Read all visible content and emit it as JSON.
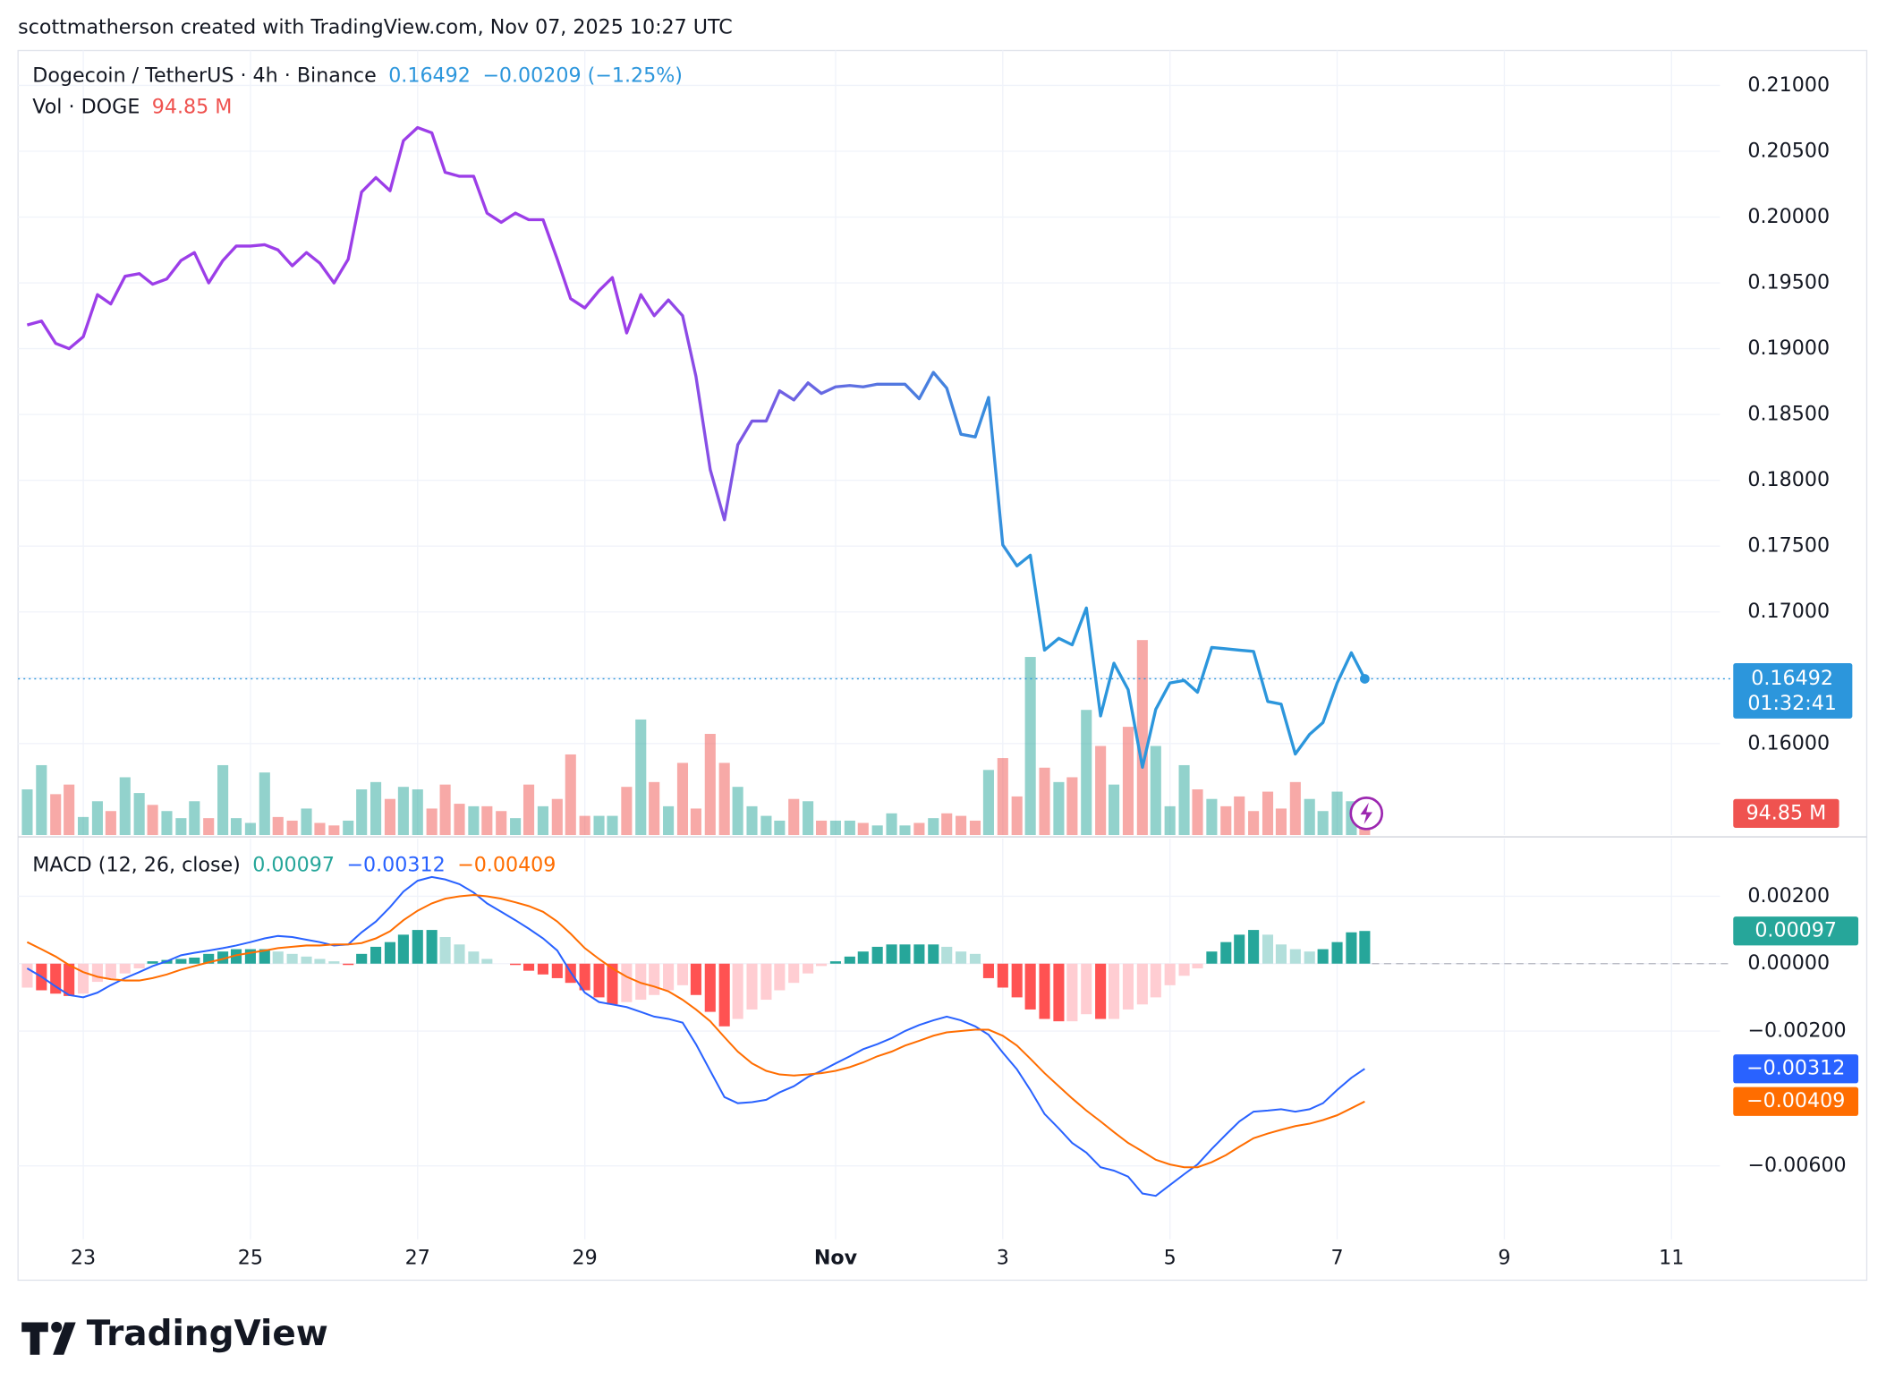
{
  "header": {
    "credit": "scottmatherson created with TradingView.com, Nov 07, 2025 10:27 UTC"
  },
  "footer": {
    "logo": "TradingView"
  },
  "chart_data": [
    {
      "type": "line",
      "title": "Dogecoin / TetherUS · 4h · Binance",
      "change": "−0.00209 (−1.25%)",
      "countdown": "01:32:41",
      "x": [
        22.33,
        22.5,
        22.67,
        22.83,
        23,
        23.17,
        23.33,
        23.5,
        23.67,
        23.83,
        24,
        24.17,
        24.33,
        24.5,
        24.67,
        24.83,
        25,
        25.17,
        25.33,
        25.5,
        25.67,
        25.83,
        26,
        26.17,
        26.33,
        26.5,
        26.67,
        26.83,
        27,
        27.17,
        27.33,
        27.5,
        27.67,
        27.83,
        28,
        28.17,
        28.33,
        28.5,
        28.67,
        28.83,
        29,
        29.17,
        29.33,
        29.5,
        29.67,
        29.83,
        30,
        30.17,
        30.33,
        30.5,
        30.67,
        30.83,
        31,
        31.17,
        31.33,
        31.5,
        31.67,
        31.83,
        32,
        32.17,
        32.33,
        32.5,
        32.67,
        32.83,
        33,
        33.17,
        33.33,
        33.5,
        33.67,
        33.83,
        34,
        34.17,
        34.33,
        34.5,
        34.67,
        34.83,
        35,
        35.17,
        35.33,
        35.5,
        35.67,
        35.83,
        36,
        36.17,
        36.33,
        36.5,
        36.67,
        36.83,
        37,
        37.17,
        37.33,
        37.5,
        37.67,
        37.83,
        38,
        38.17,
        38.33
      ],
      "xlim": [
        22.22,
        42.58
      ],
      "xticks": [
        {
          "value": 23,
          "label": "23"
        },
        {
          "value": 25,
          "label": "25"
        },
        {
          "value": 27,
          "label": "27"
        },
        {
          "value": 29,
          "label": "29"
        },
        {
          "value": 32,
          "label": "Nov"
        },
        {
          "value": 34,
          "label": "3"
        },
        {
          "value": 36,
          "label": "5"
        },
        {
          "value": 38,
          "label": "7"
        },
        {
          "value": 40,
          "label": "9"
        },
        {
          "value": 42,
          "label": "11"
        }
      ],
      "ylim": [
        0.15305,
        0.21265
      ],
      "yticks": [
        {
          "value": 0.16,
          "label": "0.16000"
        },
        {
          "value": 0.165,
          "label": "0.16500"
        },
        {
          "value": 0.17,
          "label": "0.17000"
        },
        {
          "value": 0.175,
          "label": "0.17500"
        },
        {
          "value": 0.18,
          "label": "0.18000"
        },
        {
          "value": 0.185,
          "label": "0.18500"
        },
        {
          "value": 0.19,
          "label": "0.19000"
        },
        {
          "value": 0.195,
          "label": "0.19500"
        },
        {
          "value": 0.2,
          "label": "0.20000"
        },
        {
          "value": 0.205,
          "label": "0.20500"
        },
        {
          "value": 0.21,
          "label": "0.21000"
        }
      ],
      "grid": true,
      "series": [
        {
          "colors": [
            "#9c3ee8",
            "#2c96dc"
          ],
          "values": [
            0.1918,
            0.1921,
            0.1904,
            0.19,
            0.1909,
            0.1941,
            0.1934,
            0.1955,
            0.1957,
            0.1949,
            0.1953,
            0.1967,
            0.1973,
            0.195,
            0.1967,
            0.1978,
            0.1978,
            0.1979,
            0.1975,
            0.1963,
            0.1973,
            0.1965,
            0.195,
            0.1968,
            0.2019,
            0.203,
            0.202,
            0.2058,
            0.2068,
            0.2064,
            0.2034,
            0.2031,
            0.2031,
            0.2003,
            0.1996,
            0.2003,
            0.1998,
            0.1998,
            0.1968,
            0.1938,
            0.1931,
            0.1944,
            0.1954,
            0.1912,
            0.1941,
            0.1925,
            0.1937,
            0.1925,
            0.1879,
            0.1808,
            0.177,
            0.1827,
            0.1845,
            0.1845,
            0.1868,
            0.1861,
            0.1874,
            0.1866,
            0.1871,
            0.1872,
            0.1871,
            0.1873,
            0.1873,
            0.1873,
            0.1862,
            0.1882,
            0.187,
            0.1835,
            0.1833,
            0.1863,
            0.1751,
            0.1735,
            0.1743,
            0.1671,
            0.168,
            0.1675,
            0.1703,
            0.1621,
            0.1661,
            0.1641,
            0.1582,
            0.1626,
            0.1646,
            0.1648,
            0.1639,
            0.1673,
            0.1672,
            0.1671,
            0.167,
            0.1632,
            0.163,
            0.1592,
            0.1607,
            0.1616,
            0.1646,
            0.1669,
            0.16492
          ]
        }
      ],
      "volume": {
        "name": "Vol · DOGE",
        "value_label": "94.85 M",
        "ylim": [
          0,
          3436
        ],
        "up_color": "#26a69a",
        "down_color": "#ef5350",
        "values": [
          200,
          306,
          179,
          221,
          79,
          148,
          105,
          253,
          184,
          132,
          105,
          74,
          148,
          74,
          306,
          74,
          53,
          274,
          79,
          63,
          116,
          53,
          42,
          63,
          200,
          232,
          158,
          211,
          200,
          116,
          221,
          137,
          126,
          126,
          105,
          74,
          221,
          126,
          158,
          353,
          84,
          84,
          84,
          211,
          506,
          232,
          126,
          316,
          116,
          443,
          316,
          211,
          126,
          84,
          63,
          158,
          148,
          63,
          63,
          63,
          53,
          42,
          95,
          42,
          53,
          74,
          95,
          84,
          63,
          285,
          337,
          169,
          780,
          295,
          232,
          253,
          548,
          390,
          221,
          474,
          854,
          390,
          126,
          306,
          200,
          158,
          126,
          169,
          105,
          190,
          116,
          232,
          158,
          105,
          190,
          148,
          94.85
        ]
      }
    },
    {
      "type": "macd",
      "title": "MACD (12, 26, close)",
      "ylim": [
        -0.00818,
        0.00371
      ],
      "yticks": [
        {
          "value": 0.002,
          "label": "0.00200"
        },
        {
          "value": 0,
          "label": "0.00000"
        },
        {
          "value": -0.002,
          "label": "−0.00200"
        },
        {
          "value": -0.006,
          "label": "−0.00600"
        }
      ],
      "grid": true,
      "series": [
        {
          "kind": "histogram",
          "colors": [
            "#26a69a",
            "#b2dfdb",
            "#ffcdd2",
            "#ff5252"
          ],
          "values": [
            -0.00071,
            -0.00079,
            -0.00089,
            -0.00096,
            -0.00089,
            -0.00054,
            -0.00043,
            -0.00029,
            -0.00014,
            7e-05,
            0.00011,
            0.00014,
            0.00018,
            0.00029,
            0.00036,
            0.00043,
            0.00043,
            0.00043,
            0.00036,
            0.00029,
            0.00021,
            0.00014,
            7e-05,
            -4e-05,
            0.00029,
            0.0005,
            0.00064,
            0.00086,
            0.001,
            0.001,
            0.00079,
            0.00057,
            0.00036,
            0.00014,
            0,
            -4e-05,
            -0.00021,
            -0.00032,
            -0.00043,
            -0.00057,
            -0.00079,
            -0.001,
            -0.00121,
            -0.00114,
            -0.00107,
            -0.00093,
            -0.00079,
            -0.00064,
            -0.00093,
            -0.00143,
            -0.00186,
            -0.00164,
            -0.00136,
            -0.00107,
            -0.00079,
            -0.00057,
            -0.00029,
            -7e-05,
            7e-05,
            0.00021,
            0.00036,
            0.0005,
            0.00057,
            0.00057,
            0.00057,
            0.00057,
            0.0005,
            0.00036,
            0.00029,
            -0.00043,
            -0.00071,
            -0.001,
            -0.00136,
            -0.00164,
            -0.00171,
            -0.00171,
            -0.0015,
            -0.00164,
            -0.00164,
            -0.00136,
            -0.00121,
            -0.001,
            -0.00064,
            -0.00036,
            -0.00014,
            0.00036,
            0.00064,
            0.00086,
            0.001,
            0.00086,
            0.00057,
            0.00043,
            0.00036,
            0.00043,
            0.00064,
            0.00093,
            0.00097
          ]
        },
        {
          "kind": "line",
          "color": "#2962ff",
          "value_label": "−0.00312",
          "values": [
            -0.00014,
            -0.00039,
            -0.00068,
            -0.00093,
            -0.001,
            -0.00086,
            -0.00064,
            -0.00043,
            -0.00025,
            -7e-05,
            7e-05,
            0.00025,
            0.00032,
            0.00039,
            0.00046,
            0.00054,
            0.00064,
            0.00075,
            0.00082,
            0.00079,
            0.00071,
            0.00064,
            0.00054,
            0.00057,
            0.00093,
            0.00125,
            0.00168,
            0.00214,
            0.00246,
            0.00257,
            0.0025,
            0.00236,
            0.00211,
            0.00179,
            0.00154,
            0.00129,
            0.00104,
            0.00075,
            0.00039,
            -0.00025,
            -0.00086,
            -0.00114,
            -0.00121,
            -0.00129,
            -0.00143,
            -0.00157,
            -0.00164,
            -0.00175,
            -0.00239,
            -0.00318,
            -0.00396,
            -0.00414,
            -0.00411,
            -0.00404,
            -0.00382,
            -0.00364,
            -0.00336,
            -0.00318,
            -0.00296,
            -0.00275,
            -0.00254,
            -0.00239,
            -0.00221,
            -0.002,
            -0.00182,
            -0.00168,
            -0.00157,
            -0.00168,
            -0.00186,
            -0.00211,
            -0.00264,
            -0.00314,
            -0.00375,
            -0.00446,
            -0.00489,
            -0.00532,
            -0.00561,
            -0.00604,
            -0.00614,
            -0.00632,
            -0.00682,
            -0.00689,
            -0.00657,
            -0.00625,
            -0.00596,
            -0.0055,
            -0.00507,
            -0.00468,
            -0.00439,
            -0.00436,
            -0.00432,
            -0.00439,
            -0.00432,
            -0.00414,
            -0.00375,
            -0.00339,
            -0.00312
          ]
        },
        {
          "kind": "line",
          "color": "#ff6d00",
          "value_label": "−0.00409",
          "values": [
            0.00064,
            0.00043,
            0.00021,
            -4e-05,
            -0.00025,
            -0.00039,
            -0.00046,
            -0.0005,
            -0.0005,
            -0.00043,
            -0.00032,
            -0.00018,
            -7e-05,
            4e-05,
            0.00014,
            0.00025,
            0.00032,
            0.00039,
            0.00046,
            0.0005,
            0.00054,
            0.00054,
            0.00057,
            0.00057,
            0.00061,
            0.00075,
            0.00096,
            0.00129,
            0.00157,
            0.00179,
            0.00193,
            0.002,
            0.00204,
            0.002,
            0.00193,
            0.00182,
            0.00171,
            0.00154,
            0.00125,
            0.00089,
            0.00046,
            0.00014,
            -0.00014,
            -0.00039,
            -0.00057,
            -0.00068,
            -0.00082,
            -0.00107,
            -0.00136,
            -0.00171,
            -0.00218,
            -0.00261,
            -0.00296,
            -0.00318,
            -0.00329,
            -0.00332,
            -0.00329,
            -0.00325,
            -0.00318,
            -0.00307,
            -0.00293,
            -0.00275,
            -0.00261,
            -0.00243,
            -0.00229,
            -0.00214,
            -0.00204,
            -0.002,
            -0.00196,
            -0.00196,
            -0.00214,
            -0.00243,
            -0.00282,
            -0.00325,
            -0.00364,
            -0.004,
            -0.00436,
            -0.00468,
            -0.005,
            -0.00532,
            -0.00557,
            -0.00582,
            -0.00596,
            -0.00604,
            -0.00604,
            -0.00589,
            -0.00568,
            -0.00543,
            -0.00518,
            -0.00504,
            -0.00493,
            -0.00482,
            -0.00475,
            -0.00464,
            -0.0045,
            -0.00429,
            -0.00409
          ]
        }
      ]
    }
  ]
}
